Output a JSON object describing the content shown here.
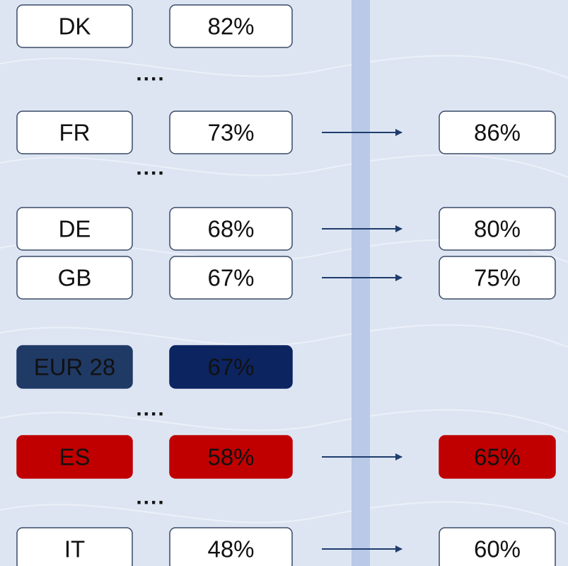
{
  "items": [
    {
      "country": "DK",
      "value": "82%"
    },
    {
      "text": "...."
    },
    {
      "country": "FR",
      "value": "73%",
      "target": "86%"
    },
    {
      "text": "...."
    },
    {
      "country": "DE",
      "value": "68%",
      "target": "80%"
    },
    {
      "country": "GB",
      "value": "67%",
      "target": "75%"
    },
    {
      "country": "EUR 28",
      "value": "67%",
      "color": "#0c2460",
      "country_color": "#203a66"
    },
    {
      "text": "...."
    },
    {
      "country": "ES",
      "value": "58%",
      "target": "65%",
      "color": "#c00000",
      "country_color": "#c00000"
    },
    {
      "text": "...."
    },
    {
      "country": "IT",
      "value": "48%",
      "target": "60%"
    }
  ]
}
